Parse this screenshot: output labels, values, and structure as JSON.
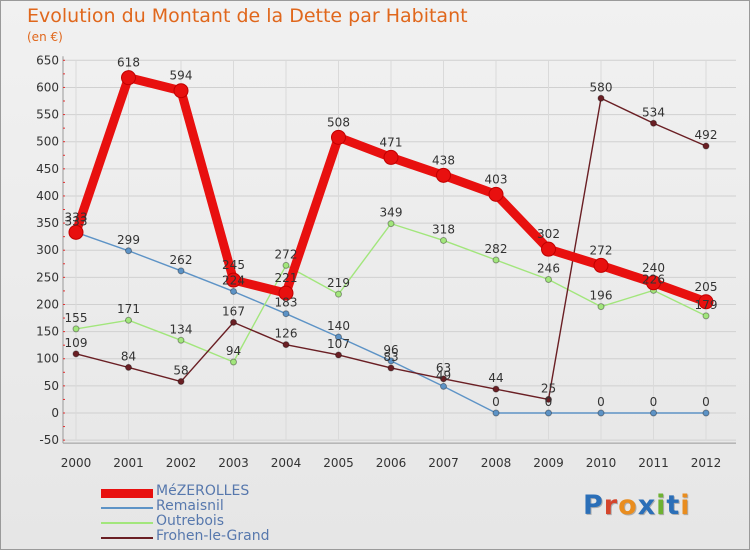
{
  "chart_data": {
    "type": "line",
    "title": "Evolution du Montant de la Dette par Habitant",
    "subtitle": "(en €)",
    "xlabel": "",
    "ylabel": "",
    "categories": [
      "2000",
      "2001",
      "2002",
      "2003",
      "2004",
      "2005",
      "2006",
      "2007",
      "2008",
      "2009",
      "2010",
      "2011",
      "2012"
    ],
    "ylim": [
      -50,
      650
    ],
    "yticks": [
      -50,
      0,
      50,
      100,
      150,
      200,
      250,
      300,
      350,
      400,
      450,
      500,
      550,
      600,
      650
    ],
    "grid": true,
    "legend_position": "bottom-left",
    "series": [
      {
        "name": "MéZEROLLES",
        "color": "#e8100f",
        "highlight": true,
        "values": [
          333,
          618,
          594,
          245,
          221,
          508,
          471,
          438,
          403,
          302,
          272,
          240,
          205
        ]
      },
      {
        "name": "Remaisnil",
        "color": "#5d93c6",
        "highlight": false,
        "values": [
          333,
          299,
          262,
          224,
          183,
          140,
          96,
          49,
          0,
          0,
          0,
          0,
          0
        ]
      },
      {
        "name": "Outrebois",
        "color": "#a2e67c",
        "highlight": false,
        "values": [
          155,
          171,
          134,
          94,
          272,
          219,
          349,
          318,
          282,
          246,
          196,
          226,
          179
        ]
      },
      {
        "name": "Frohen-le-Grand",
        "color": "#6a1f24",
        "highlight": false,
        "values": [
          109,
          84,
          58,
          167,
          126,
          107,
          83,
          63,
          44,
          25,
          580,
          534,
          492
        ]
      }
    ]
  },
  "logo": {
    "text": "Proxiti",
    "letter_colors": [
      "#2b6fb8",
      "#d4452c",
      "#e98d1f",
      "#2b6fb8",
      "#6eb232",
      "#2b6fb8",
      "#e98d1f"
    ]
  }
}
